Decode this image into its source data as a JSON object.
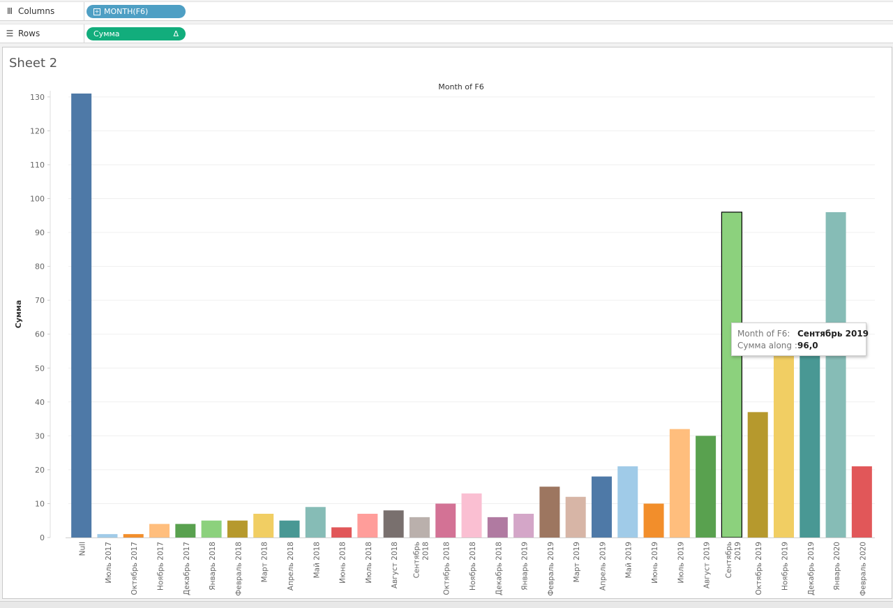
{
  "shelves": {
    "columns": {
      "label": "Columns",
      "icon": "columns-icon",
      "pill": "MONTH(F6)"
    },
    "rows": {
      "label": "Rows",
      "icon": "rows-icon",
      "pill": "Сумма",
      "pill_marker": "Δ"
    }
  },
  "sheet_title": "Sheet 2",
  "tooltip": {
    "key1": "Month of F6:",
    "val1": "Сентябрь 2019",
    "key2": "Сумма along :",
    "val2": "96,0"
  },
  "chart_data": {
    "type": "bar",
    "title": "Month of F6",
    "ylabel": "Сумма",
    "ylim": [
      0,
      131
    ],
    "yticks": [
      0,
      10,
      20,
      30,
      40,
      50,
      60,
      70,
      80,
      90,
      100,
      110,
      120,
      130
    ],
    "grid": true,
    "selected_category": "Сентябрь 2019",
    "categories": [
      {
        "label": "Null",
        "value": 131,
        "color": "#4e79a7"
      },
      {
        "label": "Июль 2017",
        "value": 1,
        "color": "#a0cbe8"
      },
      {
        "label": "Октябрь 2017",
        "value": 1,
        "color": "#f28e2b"
      },
      {
        "label": "Ноябрь 2017",
        "value": 4,
        "color": "#ffbe7d"
      },
      {
        "label": "Декабрь 2017",
        "value": 4,
        "color": "#59a14f"
      },
      {
        "label": "Январь 2018",
        "value": 5,
        "color": "#8cd17d"
      },
      {
        "label": "Февраль 2018",
        "value": 5,
        "color": "#b6992d"
      },
      {
        "label": "Март 2018",
        "value": 7,
        "color": "#f1ce63"
      },
      {
        "label": "Апрель 2018",
        "value": 5,
        "color": "#499894"
      },
      {
        "label": "Май 2018",
        "value": 9,
        "color": "#86bcb6"
      },
      {
        "label": "Июнь 2018",
        "value": 3,
        "color": "#e15759"
      },
      {
        "label": "Июль 2018",
        "value": 7,
        "color": "#ff9d9a"
      },
      {
        "label": "Август 2018",
        "value": 8,
        "color": "#79706e"
      },
      {
        "label": "Сентябрь 2018",
        "value": 6,
        "color": "#bab0ac"
      },
      {
        "label": "Октябрь 2018",
        "value": 10,
        "color": "#d37295"
      },
      {
        "label": "Ноябрь 2018",
        "value": 13,
        "color": "#fabfd2"
      },
      {
        "label": "Декабрь 2018",
        "value": 6,
        "color": "#b07aa1"
      },
      {
        "label": "Январь 2019",
        "value": 7,
        "color": "#d4a6c8"
      },
      {
        "label": "Февраль 2019",
        "value": 15,
        "color": "#9d7660"
      },
      {
        "label": "Март 2019",
        "value": 12,
        "color": "#d7b5a6"
      },
      {
        "label": "Апрель 2019",
        "value": 18,
        "color": "#4e79a7"
      },
      {
        "label": "Май 2019",
        "value": 21,
        "color": "#a0cbe8"
      },
      {
        "label": "Июнь 2019",
        "value": 10,
        "color": "#f28e2b"
      },
      {
        "label": "Июль 2019",
        "value": 32,
        "color": "#ffbe7d"
      },
      {
        "label": "Август 2019",
        "value": 30,
        "color": "#59a14f"
      },
      {
        "label": "Сентябрь 2019",
        "value": 96,
        "color": "#8cd17d"
      },
      {
        "label": "Октябрь 2019",
        "value": 37,
        "color": "#b6992d"
      },
      {
        "label": "Ноябрь 2019",
        "value": 58,
        "color": "#f1ce63"
      },
      {
        "label": "Декабрь 2019",
        "value": 58,
        "color": "#499894"
      },
      {
        "label": "Январь 2020",
        "value": 96,
        "color": "#86bcb6"
      },
      {
        "label": "Февраль 2020",
        "value": 21,
        "color": "#e15759"
      }
    ]
  }
}
